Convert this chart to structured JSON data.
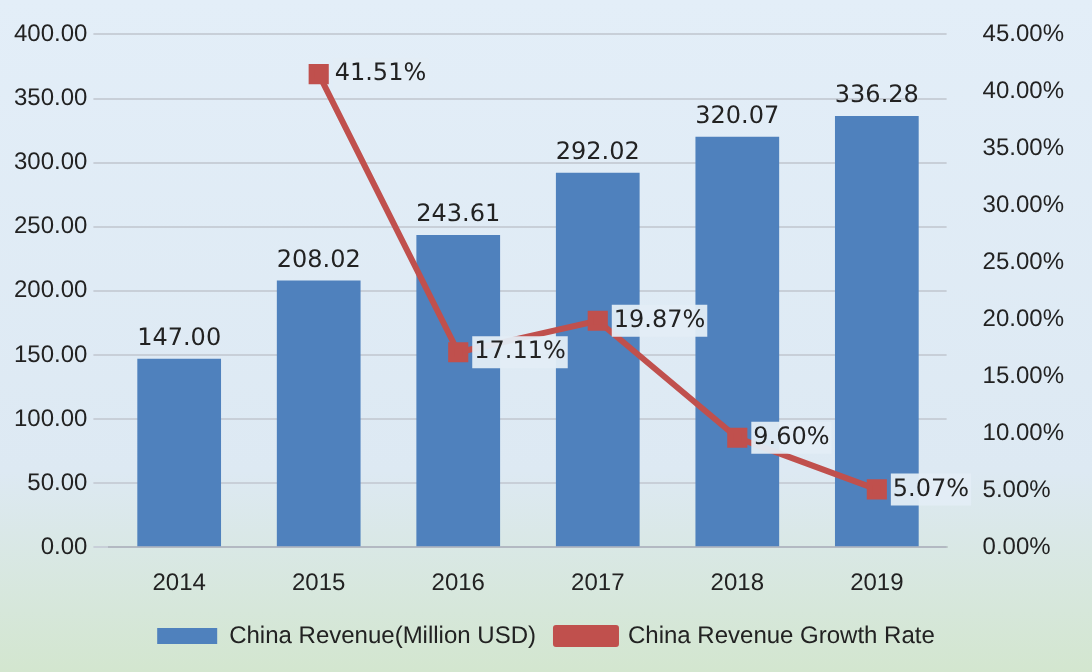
{
  "chart_data": {
    "type": "bar",
    "categories": [
      "2014",
      "2015",
      "2016",
      "2017",
      "2018",
      "2019"
    ],
    "series": [
      {
        "name": "China Revenue(Million USD)",
        "color": "#4f81bd",
        "values": [
          147.0,
          208.02,
          243.61,
          292.02,
          320.07,
          336.28
        ],
        "value_labels": [
          "147.00",
          "208.02",
          "243.61",
          "292.02",
          "320.07",
          "336.28"
        ]
      },
      {
        "name": "China Revenue Growth Rate",
        "type": "line",
        "axis": "y2",
        "color": "#c0504d",
        "values": [
          null,
          41.51,
          17.11,
          19.87,
          9.6,
          5.07
        ],
        "value_labels": [
          null,
          "41.51%",
          "17.11%",
          "19.87%",
          "9.60%",
          "5.07%"
        ]
      }
    ],
    "ylim": [
      0,
      400
    ],
    "yticks": [
      {
        "value": 0,
        "label": "0.00"
      },
      {
        "value": 50,
        "label": "50.00"
      },
      {
        "value": 100,
        "label": "100.00"
      },
      {
        "value": 150,
        "label": "150.00"
      },
      {
        "value": 200,
        "label": "200.00"
      },
      {
        "value": 250,
        "label": "250.00"
      },
      {
        "value": 300,
        "label": "300.00"
      },
      {
        "value": 350,
        "label": "350.00"
      },
      {
        "value": 400,
        "label": "400.00"
      }
    ],
    "y2lim": [
      0,
      45
    ],
    "y2ticks": [
      {
        "value": 0,
        "label": "0.00%"
      },
      {
        "value": 5,
        "label": "5.00%"
      },
      {
        "value": 10,
        "label": "10.00%"
      },
      {
        "value": 15,
        "label": "15.00%"
      },
      {
        "value": 20,
        "label": "20.00%"
      },
      {
        "value": 25,
        "label": "25.00%"
      },
      {
        "value": 30,
        "label": "30.00%"
      },
      {
        "value": 35,
        "label": "35.00%"
      },
      {
        "value": 40,
        "label": "40.00%"
      },
      {
        "value": 45,
        "label": "45.00%"
      }
    ],
    "grid": "y",
    "legend": "bottom",
    "marker": "square",
    "line_style": "solid"
  }
}
